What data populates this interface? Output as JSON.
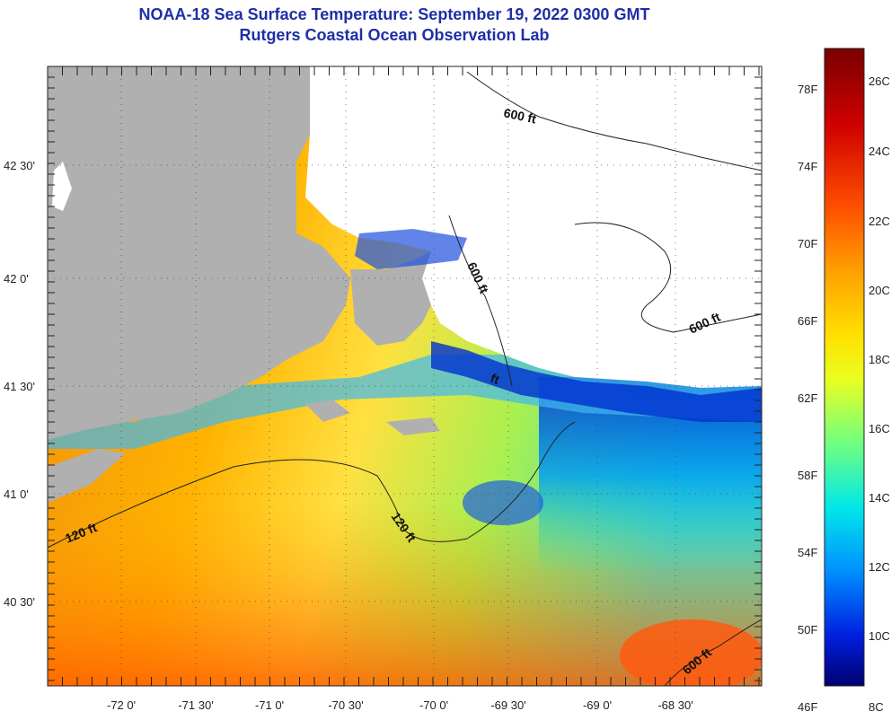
{
  "title": {
    "line1": "NOAA-18 Sea Surface Temperature:  September 19, 2022 0300 GMT",
    "line2": "Rutgers Coastal Ocean Observation Lab"
  },
  "longitude_labels": [
    "-72 0'",
    "-71 30'",
    "-71 0'",
    "-70 30'",
    "-70 0'",
    "-69 30'",
    "-69 0'",
    "-68 30'"
  ],
  "latitude_labels": [
    "42 30'",
    "42 0'",
    "41 30'",
    "41 0'",
    "40 30'"
  ],
  "contour_labels": {
    "top": "600 ft",
    "mid": "600 ft",
    "right": "600 ft",
    "lower": "ft",
    "left120": "120 ft",
    "center120": "120 ft",
    "bottomright": "600 ft"
  },
  "colorbar": {
    "fahrenheit_labels": [
      "78F",
      "74F",
      "70F",
      "66F",
      "62F",
      "58F",
      "54F",
      "50F",
      "46F"
    ],
    "celsius_labels": [
      "26C",
      "24C",
      "22C",
      "20C",
      "18C",
      "16C",
      "14C",
      "12C",
      "10C",
      "8C"
    ],
    "colors": [
      "#8b0000",
      "#e01010",
      "#ff7a00",
      "#ffd000",
      "#f0ff20",
      "#70ff70",
      "#00e8e0",
      "#0090ff",
      "#0020d0",
      "#000080"
    ]
  },
  "colors": {
    "land": "#b0b0b0",
    "cloud": "#ffffff",
    "title": "#1f2fa6"
  }
}
